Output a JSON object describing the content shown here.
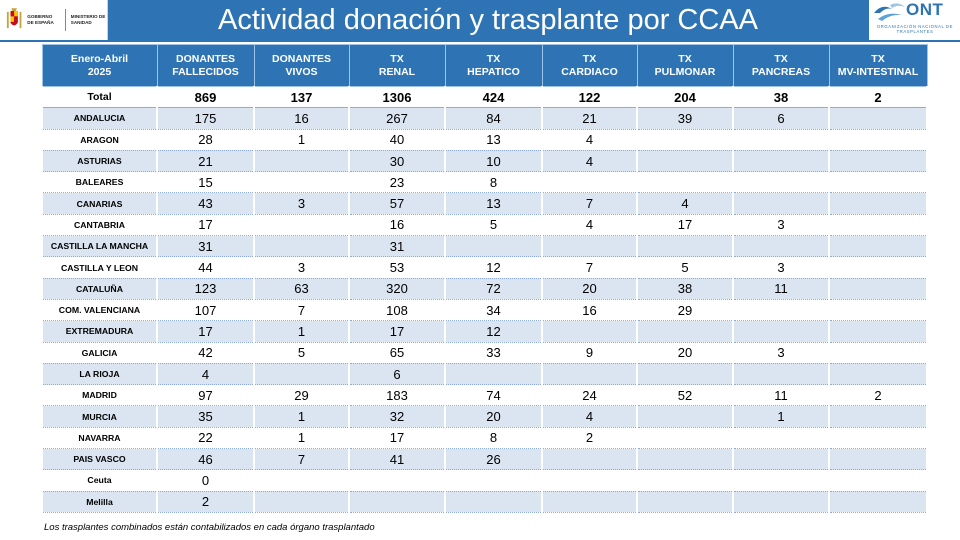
{
  "title": "Actividad donación y trasplante por CCAA",
  "logos": {
    "gov_text": "Gobierno de España",
    "ministry_text": "Ministerio de Sanidad",
    "ont_word": "ONT",
    "ont_sub": "Organización Nacional de Trasplantes"
  },
  "table": {
    "headers": [
      [
        "Enero-Abril",
        "2025"
      ],
      [
        "DONANTES",
        "FALLECIDOS"
      ],
      [
        "DONANTES",
        "VIVOS"
      ],
      [
        "TX",
        "RENAL"
      ],
      [
        "TX",
        "HEPATICO"
      ],
      [
        "TX",
        "CARDIACO"
      ],
      [
        "TX",
        "PULMONAR"
      ],
      [
        "TX",
        "PANCREAS"
      ],
      [
        "TX",
        "MV-INTESTINAL"
      ]
    ],
    "rows": [
      [
        "Total",
        "869",
        "137",
        "1306",
        "424",
        "122",
        "204",
        "38",
        "2"
      ],
      [
        "ANDALUCIA",
        "175",
        "16",
        "267",
        "84",
        "21",
        "39",
        "6",
        ""
      ],
      [
        "ARAGON",
        "28",
        "1",
        "40",
        "13",
        "4",
        "",
        "",
        ""
      ],
      [
        "ASTURIAS",
        "21",
        "",
        "30",
        "10",
        "4",
        "",
        "",
        ""
      ],
      [
        "BALEARES",
        "15",
        "",
        "23",
        "8",
        "",
        "",
        "",
        ""
      ],
      [
        "CANARIAS",
        "43",
        "3",
        "57",
        "13",
        "7",
        "4",
        "",
        ""
      ],
      [
        "CANTABRIA",
        "17",
        "",
        "16",
        "5",
        "4",
        "17",
        "3",
        ""
      ],
      [
        "CASTILLA LA MANCHA",
        "31",
        "",
        "31",
        "",
        "",
        "",
        "",
        ""
      ],
      [
        "CASTILLA Y LEON",
        "44",
        "3",
        "53",
        "12",
        "7",
        "5",
        "3",
        ""
      ],
      [
        "CATALUÑA",
        "123",
        "63",
        "320",
        "72",
        "20",
        "38",
        "11",
        ""
      ],
      [
        "COM. VALENCIANA",
        "107",
        "7",
        "108",
        "34",
        "16",
        "29",
        "",
        ""
      ],
      [
        "EXTREMADURA",
        "17",
        "1",
        "17",
        "12",
        "",
        "",
        "",
        ""
      ],
      [
        "GALICIA",
        "42",
        "5",
        "65",
        "33",
        "9",
        "20",
        "3",
        ""
      ],
      [
        "LA RIOJA",
        "4",
        "",
        "6",
        "",
        "",
        "",
        "",
        ""
      ],
      [
        "MADRID",
        "97",
        "29",
        "183",
        "74",
        "24",
        "52",
        "11",
        "2"
      ],
      [
        "MURCIA",
        "35",
        "1",
        "32",
        "20",
        "4",
        "",
        "1",
        ""
      ],
      [
        "NAVARRA",
        "22",
        "1",
        "17",
        "8",
        "2",
        "",
        "",
        ""
      ],
      [
        "PAIS VASCO",
        "46",
        "7",
        "41",
        "26",
        "",
        "",
        "",
        ""
      ],
      [
        "Ceuta",
        "0",
        "",
        "",
        "",
        "",
        "",
        "",
        ""
      ],
      [
        "Melilla",
        "2",
        "",
        "",
        "",
        "",
        "",
        "",
        ""
      ]
    ]
  },
  "footnote": "Los trasplantes combinados están contabilizados en cada órgano trasplantado",
  "colors": {
    "header_blue": "#2e74b5",
    "row_alt": "#dae5f1",
    "ont_blue": "#2e74b5"
  }
}
